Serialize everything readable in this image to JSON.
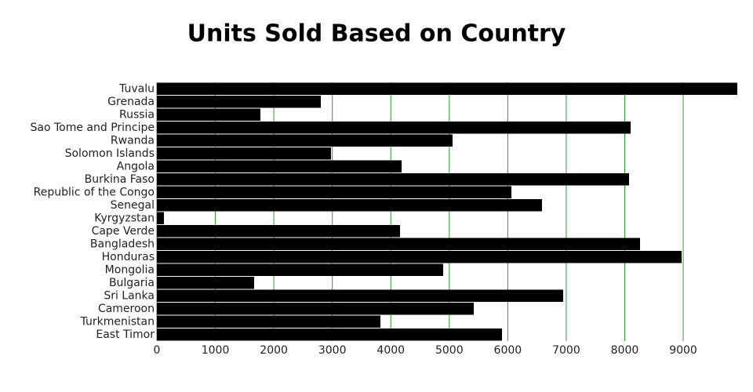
{
  "chart_data": {
    "type": "hbar",
    "title": "Units Sold Based on Country",
    "categories": [
      "Tuvalu",
      "Grenada",
      "Russia",
      "Sao Tome and Principe",
      "Rwanda",
      "Solomon Islands",
      "Angola",
      "Burkina Faso",
      "Republic of the Congo",
      "Senegal",
      "Kyrgyzstan",
      "Cape Verde",
      "Bangladesh",
      "Honduras",
      "Mongolia",
      "Bulgaria",
      "Sri Lanka",
      "Cameroon",
      "Turkmenistan",
      "East Timor"
    ],
    "values": [
      9925,
      2803,
      1770,
      8101,
      5056,
      2977,
      4185,
      8074,
      6062,
      6585,
      121,
      4158,
      8262,
      8973,
      4895,
      1663,
      6947,
      5418,
      3822,
      5901
    ],
    "color": "#000000",
    "xlim": [
      0,
      9925
    ],
    "xticks": [
      0,
      1000,
      2000,
      3000,
      4000,
      5000,
      6000,
      7000,
      8000,
      9000
    ],
    "grid": true,
    "grid_color": "#2e9a2e"
  }
}
